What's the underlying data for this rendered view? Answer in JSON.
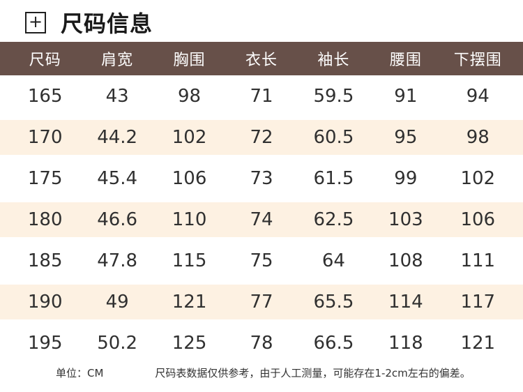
{
  "header": {
    "title": "尺码信息",
    "plus_icon_glyph": "+"
  },
  "table": {
    "columns": [
      "尺码",
      "肩宽",
      "胸围",
      "衣长",
      "袖长",
      "腰围",
      "下摆围"
    ],
    "rows": [
      [
        "165",
        "43",
        "98",
        "71",
        "59.5",
        "91",
        "94"
      ],
      [
        "170",
        "44.2",
        "102",
        "72",
        "60.5",
        "95",
        "98"
      ],
      [
        "175",
        "45.4",
        "106",
        "73",
        "61.5",
        "99",
        "102"
      ],
      [
        "180",
        "46.6",
        "110",
        "74",
        "62.5",
        "103",
        "106"
      ],
      [
        "185",
        "47.8",
        "115",
        "75",
        "64",
        "108",
        "111"
      ],
      [
        "190",
        "49",
        "121",
        "77",
        "65.5",
        "114",
        "117"
      ],
      [
        "195",
        "50.2",
        "125",
        "78",
        "66.5",
        "118",
        "121"
      ]
    ]
  },
  "footer": {
    "unit_label": "单位：CM",
    "disclaimer": "尺码表数据仅供参考，由于人工测量，可能存在1-2cm左右的偏差。"
  },
  "colors": {
    "header_bg": "#675049",
    "header_text": "#ffffff",
    "stripe_bg": "#fdf1e2",
    "body_text": "#303030",
    "title_text": "#1a1a1a"
  }
}
